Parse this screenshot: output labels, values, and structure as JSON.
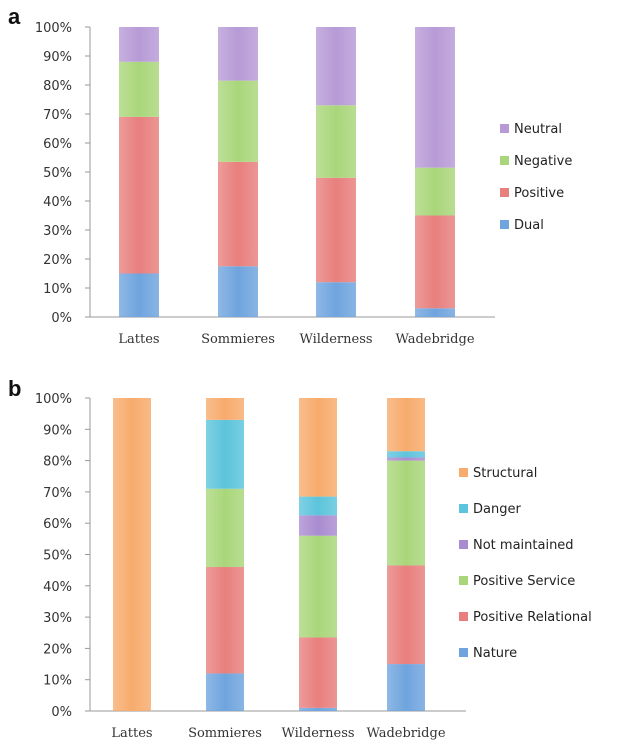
{
  "chart_data": [
    {
      "panel_label": "a",
      "type": "bar",
      "stacked": true,
      "normalized": true,
      "categories": [
        "Lattes",
        "Sommieres",
        "Wilderness",
        "Wadebridge"
      ],
      "ylim": [
        0,
        100
      ],
      "yticks": [
        "0%",
        "10%",
        "20%",
        "30%",
        "40%",
        "50%",
        "60%",
        "70%",
        "80%",
        "90%",
        "100%"
      ],
      "series": [
        {
          "name": "Dual",
          "color": "#6fa4de",
          "values": [
            15,
            17.5,
            12,
            3
          ]
        },
        {
          "name": "Positive",
          "color": "#e87f7d",
          "values": [
            54,
            36,
            36,
            32
          ]
        },
        {
          "name": "Negative",
          "color": "#a9d67a",
          "values": [
            19,
            28,
            25,
            16.5
          ]
        },
        {
          "name": "Neutral",
          "color": "#b79ad6",
          "values": [
            12,
            18.5,
            27,
            48.5
          ]
        }
      ],
      "legend": {
        "position": "right",
        "order": [
          "Neutral",
          "Negative",
          "Positive",
          "Dual"
        ]
      }
    },
    {
      "panel_label": "b",
      "type": "bar",
      "stacked": true,
      "normalized": true,
      "categories": [
        "Lattes",
        "Sommieres",
        "Wilderness",
        "Wadebridge"
      ],
      "ylim": [
        0,
        100
      ],
      "yticks": [
        "0%",
        "10%",
        "20%",
        "30%",
        "40%",
        "50%",
        "60%",
        "70%",
        "80%",
        "90%",
        "100%"
      ],
      "series": [
        {
          "name": "Nature",
          "color": "#6fa4de",
          "values": [
            0,
            12,
            1,
            15
          ]
        },
        {
          "name": "Positive Relational",
          "color": "#e87f7d",
          "values": [
            0,
            34,
            22.5,
            31.5
          ]
        },
        {
          "name": "Positive Service",
          "color": "#a9d67a",
          "values": [
            0,
            25,
            32.5,
            33.5
          ]
        },
        {
          "name": "Not maintained",
          "color": "#a98bd0",
          "values": [
            0,
            0,
            6.5,
            1
          ]
        },
        {
          "name": "Danger",
          "color": "#5cc4dc",
          "values": [
            0,
            22,
            6,
            2
          ]
        },
        {
          "name": "Structural",
          "color": "#f7ab6c",
          "values": [
            100,
            7,
            31.5,
            17
          ]
        }
      ],
      "legend": {
        "position": "right",
        "order": [
          "Structural",
          "Danger",
          "Not maintained",
          "Positive Service",
          "Positive Relational",
          "Nature"
        ]
      }
    }
  ]
}
